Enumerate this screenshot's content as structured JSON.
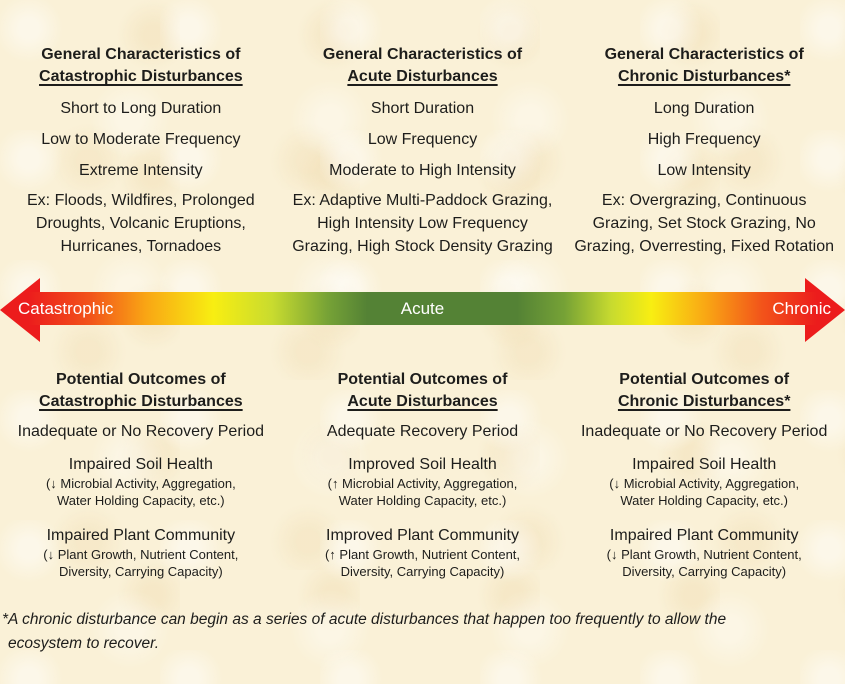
{
  "canvas": {
    "background_color": "#FAF1D7",
    "text_color": "#1D1D1B"
  },
  "top_sections": [
    {
      "title_line1": "General Characteristics of",
      "title_line2": "Catastrophic Disturbances",
      "items": [
        "Short to Long Duration",
        "Low to Moderate Frequency",
        "Extreme Intensity"
      ],
      "example_lines": [
        "Ex: Floods, Wildfires, Prolonged",
        "Droughts, Volcanic Eruptions,",
        "Hurricanes, Tornadoes"
      ]
    },
    {
      "title_line1": "General Characteristics of",
      "title_line2": "Acute Disturbances",
      "items": [
        "Short Duration",
        "Low Frequency",
        "Moderate to High Intensity"
      ],
      "example_lines": [
        "Ex: Adaptive Multi-Paddock Grazing,",
        "High Intensity Low Frequency",
        "Grazing, High Stock Density Grazing"
      ]
    },
    {
      "title_line1": "General Characteristics of",
      "title_line2": "Chronic Disturbances*",
      "items": [
        "Long Duration",
        "High Frequency",
        "Low Intensity"
      ],
      "example_lines": [
        "Ex: Overgrazing, Continuous",
        "Grazing, Set Stock Grazing, No",
        "Grazing, Overresting, Fixed Rotation"
      ]
    }
  ],
  "gradient_arrow": {
    "left_label": "Catastrophic",
    "center_label": "Acute",
    "right_label": "Chronic",
    "label_color": "#FFFFFF",
    "red": "#EC1C1C",
    "orange": "#F9A614",
    "yellow": "#F8EE12",
    "green": "#548235"
  },
  "bottom_sections": [
    {
      "title_line1": "Potential Outcomes of",
      "title_line2": "Catastrophic Disturbances",
      "recovery": "Inadequate or No Recovery Period",
      "soil_title": "Impaired Soil Health",
      "soil_detail_lines": [
        "(↓ Microbial Activity, Aggregation,",
        "Water Holding Capacity, etc.)"
      ],
      "plant_title": "Impaired Plant Community",
      "plant_detail_lines": [
        "(↓ Plant Growth, Nutrient Content,",
        "Diversity, Carrying Capacity)"
      ]
    },
    {
      "title_line1": "Potential Outcomes of",
      "title_line2": "Acute Disturbances",
      "recovery": "Adequate Recovery Period",
      "soil_title": "Improved Soil Health",
      "soil_detail_lines": [
        "(↑ Microbial Activity, Aggregation,",
        "Water Holding Capacity, etc.)"
      ],
      "plant_title": "Improved Plant Community",
      "plant_detail_lines": [
        "(↑ Plant Growth, Nutrient Content,",
        "Diversity, Carrying Capacity)"
      ]
    },
    {
      "title_line1": "Potential Outcomes of",
      "title_line2": "Chronic Disturbances*",
      "recovery": "Inadequate or No Recovery Period",
      "soil_title": "Impaired Soil Health",
      "soil_detail_lines": [
        "(↓ Microbial Activity, Aggregation,",
        "Water Holding Capacity, etc.)"
      ],
      "plant_title": "Impaired Plant Community",
      "plant_detail_lines": [
        "(↓ Plant Growth, Nutrient Content,",
        "Diversity, Carrying Capacity)"
      ]
    }
  ],
  "footnote_lines": [
    "*A chronic disturbance can begin as a series of acute disturbances that happen too frequently to allow the",
    "ecosystem to recover."
  ]
}
